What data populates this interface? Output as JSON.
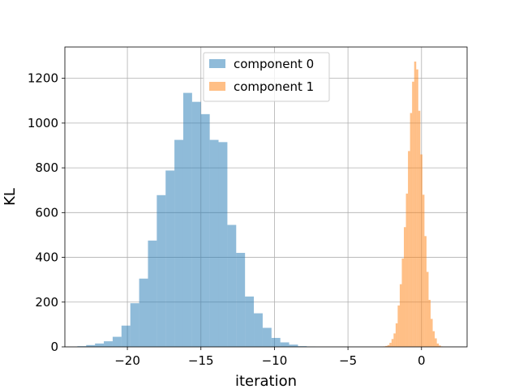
{
  "chart_data": {
    "type": "bar",
    "subtype": "histogram",
    "title": "",
    "xlabel": "iteration",
    "ylabel": "KL",
    "xlim": [
      -24.25,
      3.1
    ],
    "ylim": [
      0,
      1340
    ],
    "xticks": [
      -20,
      -15,
      -10,
      -5,
      0
    ],
    "xtick_labels": [
      "−20",
      "−15",
      "−10",
      "−5",
      "0"
    ],
    "yticks": [
      0,
      200,
      400,
      600,
      800,
      1000,
      1200
    ],
    "ytick_labels": [
      "0",
      "200",
      "400",
      "600",
      "800",
      "1000",
      "1200"
    ],
    "grid": true,
    "legend_position": "top-center",
    "series": [
      {
        "name": "component 0",
        "color": "#1f77b4",
        "alpha": 0.5,
        "bin_start": -23.4,
        "bin_width": 0.6,
        "counts": [
          3,
          8,
          15,
          25,
          45,
          95,
          195,
          305,
          475,
          678,
          788,
          925,
          1135,
          1095,
          1040,
          925,
          915,
          545,
          420,
          225,
          150,
          85,
          40,
          20,
          10,
          3,
          1
        ]
      },
      {
        "name": "component 1",
        "color": "#ff7f0e",
        "alpha": 0.5,
        "bin_start": -2.6,
        "bin_width": 0.14,
        "counts": [
          2,
          4,
          8,
          18,
          35,
          60,
          105,
          185,
          280,
          395,
          535,
          685,
          875,
          1045,
          1185,
          1275,
          1240,
          1055,
          860,
          680,
          495,
          335,
          210,
          125,
          70,
          38,
          15,
          6,
          2
        ]
      }
    ]
  }
}
